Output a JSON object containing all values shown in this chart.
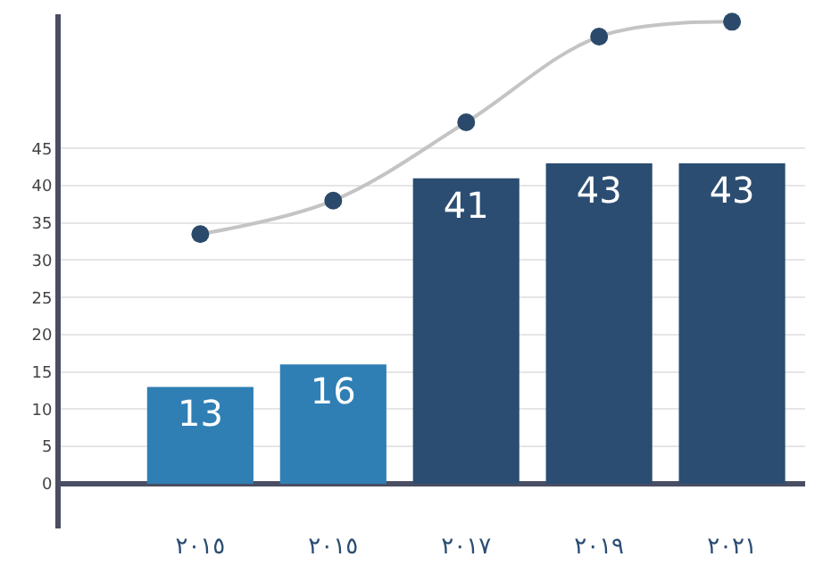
{
  "chart_data": {
    "type": "bar",
    "categories": [
      "٢٠١٥",
      "٢٠١٥",
      "٢٠١٧",
      "٢٠١٩",
      "٢٠٢١"
    ],
    "series": [
      {
        "values": [
          13,
          16,
          41,
          43,
          43
        ],
        "value_labels": [
          "13",
          "16",
          "41",
          "43",
          "43"
        ],
        "colors": [
          "#2f7fb5",
          "#2f7fb5",
          "#2b4d72",
          "#2b4d72",
          "#2b4d72"
        ]
      },
      {
        "type": "line",
        "values": [
          33.5,
          38,
          48.5,
          60,
          62
        ],
        "color": "#2b4a6b",
        "marker": "circle"
      }
    ],
    "ylim": [
      -6,
      63
    ],
    "yticks": [
      0,
      5,
      10,
      15,
      20,
      25,
      30,
      35,
      40,
      45
    ],
    "grid": "y"
  }
}
